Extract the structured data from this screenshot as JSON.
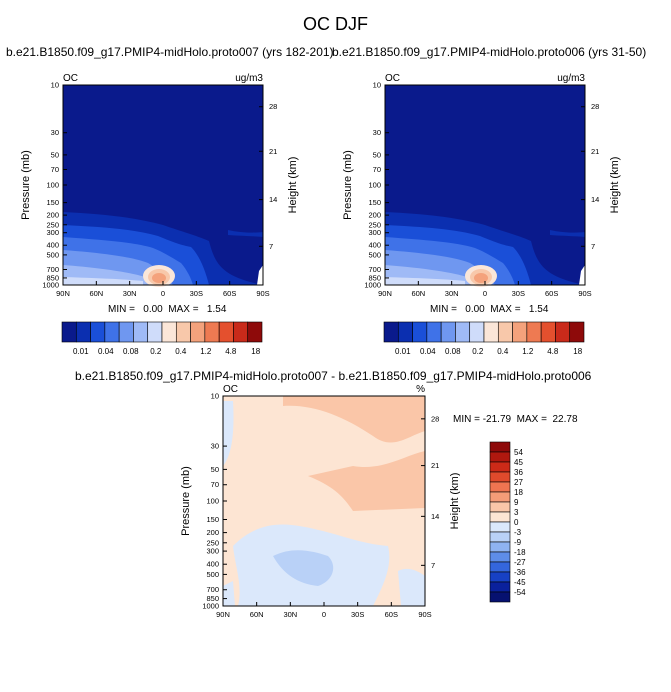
{
  "main_title": "OC DJF",
  "panels": [
    {
      "title": "b.e21.B1850.f09_g17.PMIP4-midHolo.proto007 (yrs 182-201)",
      "left_label": "OC",
      "right_label": "ug/m3",
      "stats": "MIN =   0.00  MAX =   1.54"
    },
    {
      "title": "b.e21.B1850.f09_g17.PMIP4-midHolo.proto006 (yrs 31-50)",
      "left_label": "OC",
      "right_label": "ug/m3",
      "stats": "MIN =   0.00  MAX =   1.54"
    },
    {
      "title": "b.e21.B1850.f09_g17.PMIP4-midHolo.proto007 - b.e21.B1850.f09_g17.PMIP4-midHolo.proto006",
      "left_label": "OC",
      "right_label": "%",
      "stats": "MIN = -21.79  MAX =  22.78"
    }
  ],
  "chart_data": [
    {
      "type": "heatmap",
      "title": "b.e21.B1850.f09_g17.PMIP4-midHolo.proto007 (yrs 182-201)",
      "xlabel": "",
      "ylabel": "Pressure (mb)",
      "ylabel_right": "Height (km)",
      "x_ticks": [
        "90N",
        "60N",
        "30N",
        "0",
        "30S",
        "60S",
        "90S"
      ],
      "y_ticks": [
        "10",
        "30",
        "50",
        "70",
        "100",
        "150",
        "200",
        "250",
        "300",
        "400",
        "500",
        "700",
        "850",
        "1000"
      ],
      "y_right_ticks": [
        "28",
        "21",
        "14",
        "7"
      ],
      "units": "ug/m3",
      "min": 0.0,
      "max": 1.54,
      "colorbar_levels": [
        "0.01",
        "0.04",
        "0.08",
        "0.2",
        "0.4",
        "1.2",
        "4.8",
        "18"
      ]
    },
    {
      "type": "heatmap",
      "title": "b.e21.B1850.f09_g17.PMIP4-midHolo.proto006 (yrs 31-50)",
      "xlabel": "",
      "ylabel": "Pressure (mb)",
      "ylabel_right": "Height (km)",
      "x_ticks": [
        "90N",
        "60N",
        "30N",
        "0",
        "30S",
        "60S",
        "90S"
      ],
      "y_ticks": [
        "10",
        "30",
        "50",
        "70",
        "100",
        "150",
        "200",
        "250",
        "300",
        "400",
        "500",
        "700",
        "850",
        "1000"
      ],
      "y_right_ticks": [
        "28",
        "21",
        "14",
        "7"
      ],
      "units": "ug/m3",
      "min": 0.0,
      "max": 1.54,
      "colorbar_levels": [
        "0.01",
        "0.04",
        "0.08",
        "0.2",
        "0.4",
        "1.2",
        "4.8",
        "18"
      ]
    },
    {
      "type": "heatmap",
      "title": "b.e21.B1850.f09_g17.PMIP4-midHolo.proto007 - b.e21.B1850.f09_g17.PMIP4-midHolo.proto006",
      "xlabel": "",
      "ylabel": "Pressure (mb)",
      "ylabel_right": "Height (km)",
      "x_ticks": [
        "90N",
        "60N",
        "30N",
        "0",
        "30S",
        "60S",
        "90S"
      ],
      "y_ticks": [
        "10",
        "30",
        "50",
        "70",
        "100",
        "150",
        "200",
        "250",
        "300",
        "400",
        "500",
        "700",
        "850",
        "1000"
      ],
      "y_right_ticks": [
        "28",
        "21",
        "14",
        "7"
      ],
      "units": "%",
      "min": -21.79,
      "max": 22.78,
      "colorbar_levels": [
        "54",
        "45",
        "36",
        "27",
        "18",
        "9",
        "3",
        "0",
        "-3",
        "-9",
        "-18",
        "-27",
        "-36",
        "-45",
        "-54"
      ]
    }
  ],
  "colors": {
    "abs_scale": [
      "#0a1a8c",
      "#0b2fb0",
      "#1a4fd8",
      "#3f72e8",
      "#6f97f0",
      "#9fbaf6",
      "#cfdcfa",
      "#fbe6d8",
      "#f8c8aa",
      "#f4a27c",
      "#ee7a52",
      "#e4502e",
      "#c92a1a",
      "#8e0a0a"
    ],
    "diff_scale": [
      "#8e0a0a",
      "#b0180f",
      "#cc2a18",
      "#e04a2c",
      "#ef7451",
      "#f59c78",
      "#fac6a8",
      "#fde5d3",
      "#dbe8fb",
      "#b9d1f7",
      "#8fb3f1",
      "#5e8de8",
      "#3466dc",
      "#1741c4",
      "#0a219c",
      "#061170"
    ]
  }
}
